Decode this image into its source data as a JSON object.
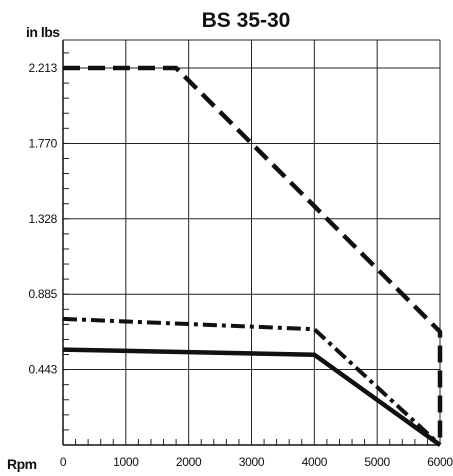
{
  "chart_data": {
    "type": "line",
    "title": "BS 35-30",
    "ylabel": "in lbs",
    "xlabel": "Rpm",
    "xlim": [
      0,
      6000
    ],
    "ylim": [
      0,
      2.5
    ],
    "x_ticks": [
      0,
      1000,
      2000,
      3000,
      4000,
      5000,
      6000
    ],
    "x_tick_labels": [
      "0",
      "1000",
      "2000",
      "3000",
      "4000",
      "5000",
      "6000"
    ],
    "y_ticks": [
      0.443,
      0.885,
      1.328,
      1.77,
      2.213
    ],
    "y_tick_labels": [
      "0.443",
      "0.885",
      "1.328",
      "1.770",
      "2.213"
    ],
    "grid": true,
    "legend": "none",
    "series": [
      {
        "style": "dashed",
        "x": [
          0,
          1800,
          6000,
          6000
        ],
        "y": [
          2.213,
          2.213,
          0.665,
          0
        ]
      },
      {
        "style": "dash-dot",
        "x": [
          0,
          4000,
          6000
        ],
        "y": [
          0.74,
          0.68,
          0
        ]
      },
      {
        "style": "solid",
        "x": [
          0,
          4000,
          6000
        ],
        "y": [
          0.56,
          0.53,
          0
        ]
      }
    ]
  }
}
